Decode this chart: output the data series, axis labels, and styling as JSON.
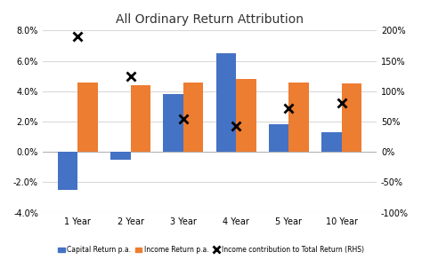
{
  "title": "All Ordinary Return Attribution",
  "categories": [
    "1 Year",
    "2 Year",
    "3 Year",
    "4 Year",
    "5 Year",
    "10 Year"
  ],
  "capital_return": [
    -0.025,
    -0.005,
    0.038,
    0.065,
    0.018,
    0.013
  ],
  "income_return": [
    0.046,
    0.044,
    0.046,
    0.048,
    0.046,
    0.045
  ],
  "income_contribution_rhs": [
    1.9,
    1.25,
    0.55,
    0.42,
    0.72,
    0.8
  ],
  "bar_color_capital": "#4472C4",
  "bar_color_income": "#ED7D31",
  "marker_color": "black",
  "ylim_left": [
    -0.04,
    0.08
  ],
  "ylim_right": [
    -1.0,
    2.0
  ],
  "yticks_left": [
    -0.04,
    -0.02,
    0.0,
    0.02,
    0.04,
    0.06,
    0.08
  ],
  "ytick_labels_left": [
    "-4.0%",
    "-2.0%",
    "0.0%",
    "2.0%",
    "4.0%",
    "6.0%",
    "8.0%"
  ],
  "yticks_right": [
    -1.0,
    -0.5,
    0.0,
    0.5,
    1.0,
    1.5,
    2.0
  ],
  "ytick_labels_right": [
    "-100%",
    "-50%",
    "0%",
    "50%",
    "100%",
    "150%",
    "200%"
  ],
  "legend_labels": [
    "Capital Return p.a.",
    "Income Return p.a.",
    "Income contribution to Total Return (RHS)"
  ],
  "background_color": "#ffffff",
  "grid_color": "#d9d9d9"
}
